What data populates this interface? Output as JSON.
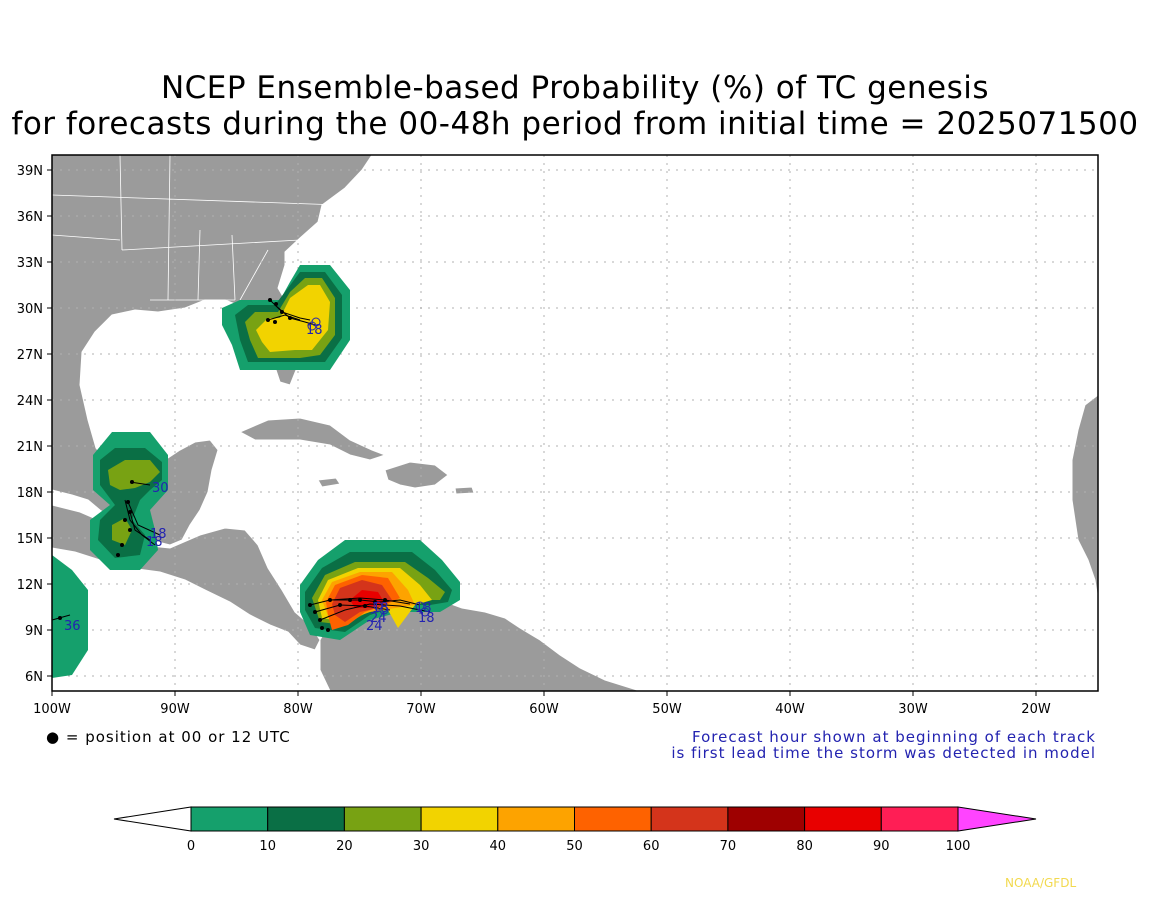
{
  "title_line1": "NCEP Ensemble-based Probability (%) of TC genesis",
  "title_line2": "for forecasts during the 00-48h period from initial time = 2025071500",
  "lat_labels": [
    "39N",
    "36N",
    "33N",
    "30N",
    "27N",
    "24N",
    "21N",
    "18N",
    "15N",
    "12N",
    "9N",
    "6N"
  ],
  "lon_labels": [
    "100W",
    "90W",
    "80W",
    "70W",
    "60W",
    "50W",
    "40W",
    "30W",
    "20W"
  ],
  "legend_position": "● = position at 00 or 12 UTC",
  "forecast_note_1": "Forecast hour shown at beginning of each track",
  "forecast_note_2": "is first lead time the storm was detected in model",
  "track_labels": [
    "30",
    "18",
    "18",
    "36",
    "24",
    "18",
    "18",
    "18",
    "24",
    "18"
  ],
  "colorbar": {
    "ticks": [
      "0",
      "10",
      "20",
      "30",
      "40",
      "50",
      "60",
      "70",
      "80",
      "90",
      "100"
    ],
    "colors": [
      "#15a06c",
      "#0a6f45",
      "#78a213",
      "#f2d300",
      "#fda300",
      "#fe6200",
      "#d4341b",
      "#9e0000",
      "#e80000",
      "#ff1e55",
      "#ff44ff"
    ]
  },
  "credit": "NOAA/GFDL",
  "colors": {
    "land": "#9b9b9b",
    "coast": "#ffffff",
    "grid": "#aaaaaa",
    "label_blue": "#2323b0"
  }
}
